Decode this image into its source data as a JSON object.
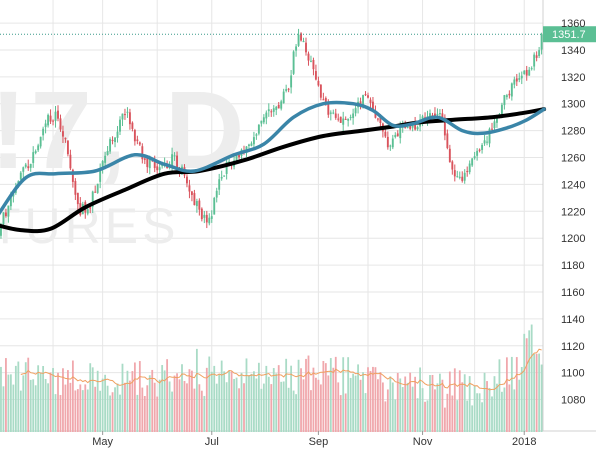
{
  "watermark": {
    "symbol": "!7, D",
    "subtitle": "TURES"
  },
  "colors": {
    "up": "#5bbf94",
    "down": "#d9535c",
    "vol_up": "#a9dbc6",
    "vol_down": "#f0a7ac",
    "ma_short": "#3a85a8",
    "ma_long": "#000000",
    "vol_ma": "#f0a060",
    "grid": "#e6e6e6",
    "last_price_line": "#3a9a8a",
    "last_price_bg": "#5bbf94",
    "axis_text": "#333333",
    "watermark": "#ececec"
  },
  "chart_data": {
    "type": "candlestick",
    "x_ticks": [
      "May",
      "Jul",
      "Sep",
      "Nov",
      "2018"
    ],
    "y_ticks": [
      1080,
      1100,
      1120,
      1140,
      1160,
      1180,
      1200,
      1220,
      1240,
      1260,
      1280,
      1300,
      1320,
      1340,
      1360
    ],
    "ylim": [
      1070,
      1366
    ],
    "last_price": 1351.7,
    "last_price_label": "1351.7",
    "months": [
      {
        "m": "2017-03",
        "trading_days": 23
      },
      {
        "m": "2017-04",
        "trading_days": 20
      },
      {
        "m": "2017-05",
        "trading_days": 22
      },
      {
        "m": "2017-06",
        "trading_days": 22
      },
      {
        "m": "2017-07",
        "trading_days": 20
      },
      {
        "m": "2017-08",
        "trading_days": 23
      },
      {
        "m": "2017-09",
        "trading_days": 20
      },
      {
        "m": "2017-10",
        "trading_days": 22
      },
      {
        "m": "2017-11",
        "trading_days": 21
      },
      {
        "m": "2017-12",
        "trading_days": 20
      },
      {
        "m": "2018-01",
        "trading_days": 8
      }
    ],
    "price_path": [
      [
        0,
        1200
      ],
      [
        8,
        1240
      ],
      [
        15,
        1260
      ],
      [
        20,
        1288
      ],
      [
        25,
        1292
      ],
      [
        28,
        1270
      ],
      [
        34,
        1220
      ],
      [
        38,
        1225
      ],
      [
        45,
        1265
      ],
      [
        52,
        1295
      ],
      [
        55,
        1280
      ],
      [
        60,
        1258
      ],
      [
        66,
        1250
      ],
      [
        72,
        1260
      ],
      [
        76,
        1245
      ],
      [
        82,
        1220
      ],
      [
        86,
        1212
      ],
      [
        90,
        1245
      ],
      [
        95,
        1258
      ],
      [
        102,
        1270
      ],
      [
        108,
        1290
      ],
      [
        114,
        1300
      ],
      [
        118,
        1315
      ],
      [
        122,
        1355
      ],
      [
        126,
        1335
      ],
      [
        132,
        1300
      ],
      [
        136,
        1290
      ],
      [
        140,
        1285
      ],
      [
        145,
        1300
      ],
      [
        150,
        1305
      ],
      [
        154,
        1290
      ],
      [
        158,
        1272
      ],
      [
        164,
        1280
      ],
      [
        170,
        1285
      ],
      [
        176,
        1290
      ],
      [
        180,
        1290
      ],
      [
        184,
        1250
      ],
      [
        188,
        1245
      ],
      [
        192,
        1262
      ],
      [
        198,
        1275
      ],
      [
        204,
        1300
      ],
      [
        210,
        1320
      ],
      [
        214,
        1325
      ],
      [
        218,
        1335
      ],
      [
        221,
        1352
      ]
    ],
    "ma_short": [
      [
        0,
        1215
      ],
      [
        12,
        1245
      ],
      [
        24,
        1248
      ],
      [
        40,
        1250
      ],
      [
        56,
        1262
      ],
      [
        68,
        1255
      ],
      [
        80,
        1250
      ],
      [
        96,
        1262
      ],
      [
        108,
        1270
      ],
      [
        120,
        1290
      ],
      [
        132,
        1300
      ],
      [
        144,
        1300
      ],
      [
        152,
        1295
      ],
      [
        160,
        1284
      ],
      [
        168,
        1285
      ],
      [
        178,
        1290
      ],
      [
        188,
        1280
      ],
      [
        196,
        1278
      ],
      [
        206,
        1282
      ],
      [
        214,
        1288
      ],
      [
        221,
        1296
      ]
    ],
    "ma_long": [
      [
        0,
        1210
      ],
      [
        10,
        1206
      ],
      [
        22,
        1207
      ],
      [
        36,
        1223
      ],
      [
        52,
        1236
      ],
      [
        68,
        1248
      ],
      [
        82,
        1250
      ],
      [
        100,
        1258
      ],
      [
        116,
        1268
      ],
      [
        132,
        1276
      ],
      [
        148,
        1280
      ],
      [
        160,
        1283
      ],
      [
        170,
        1286
      ],
      [
        184,
        1288
      ],
      [
        200,
        1290
      ],
      [
        212,
        1293
      ],
      [
        221,
        1296
      ]
    ]
  }
}
